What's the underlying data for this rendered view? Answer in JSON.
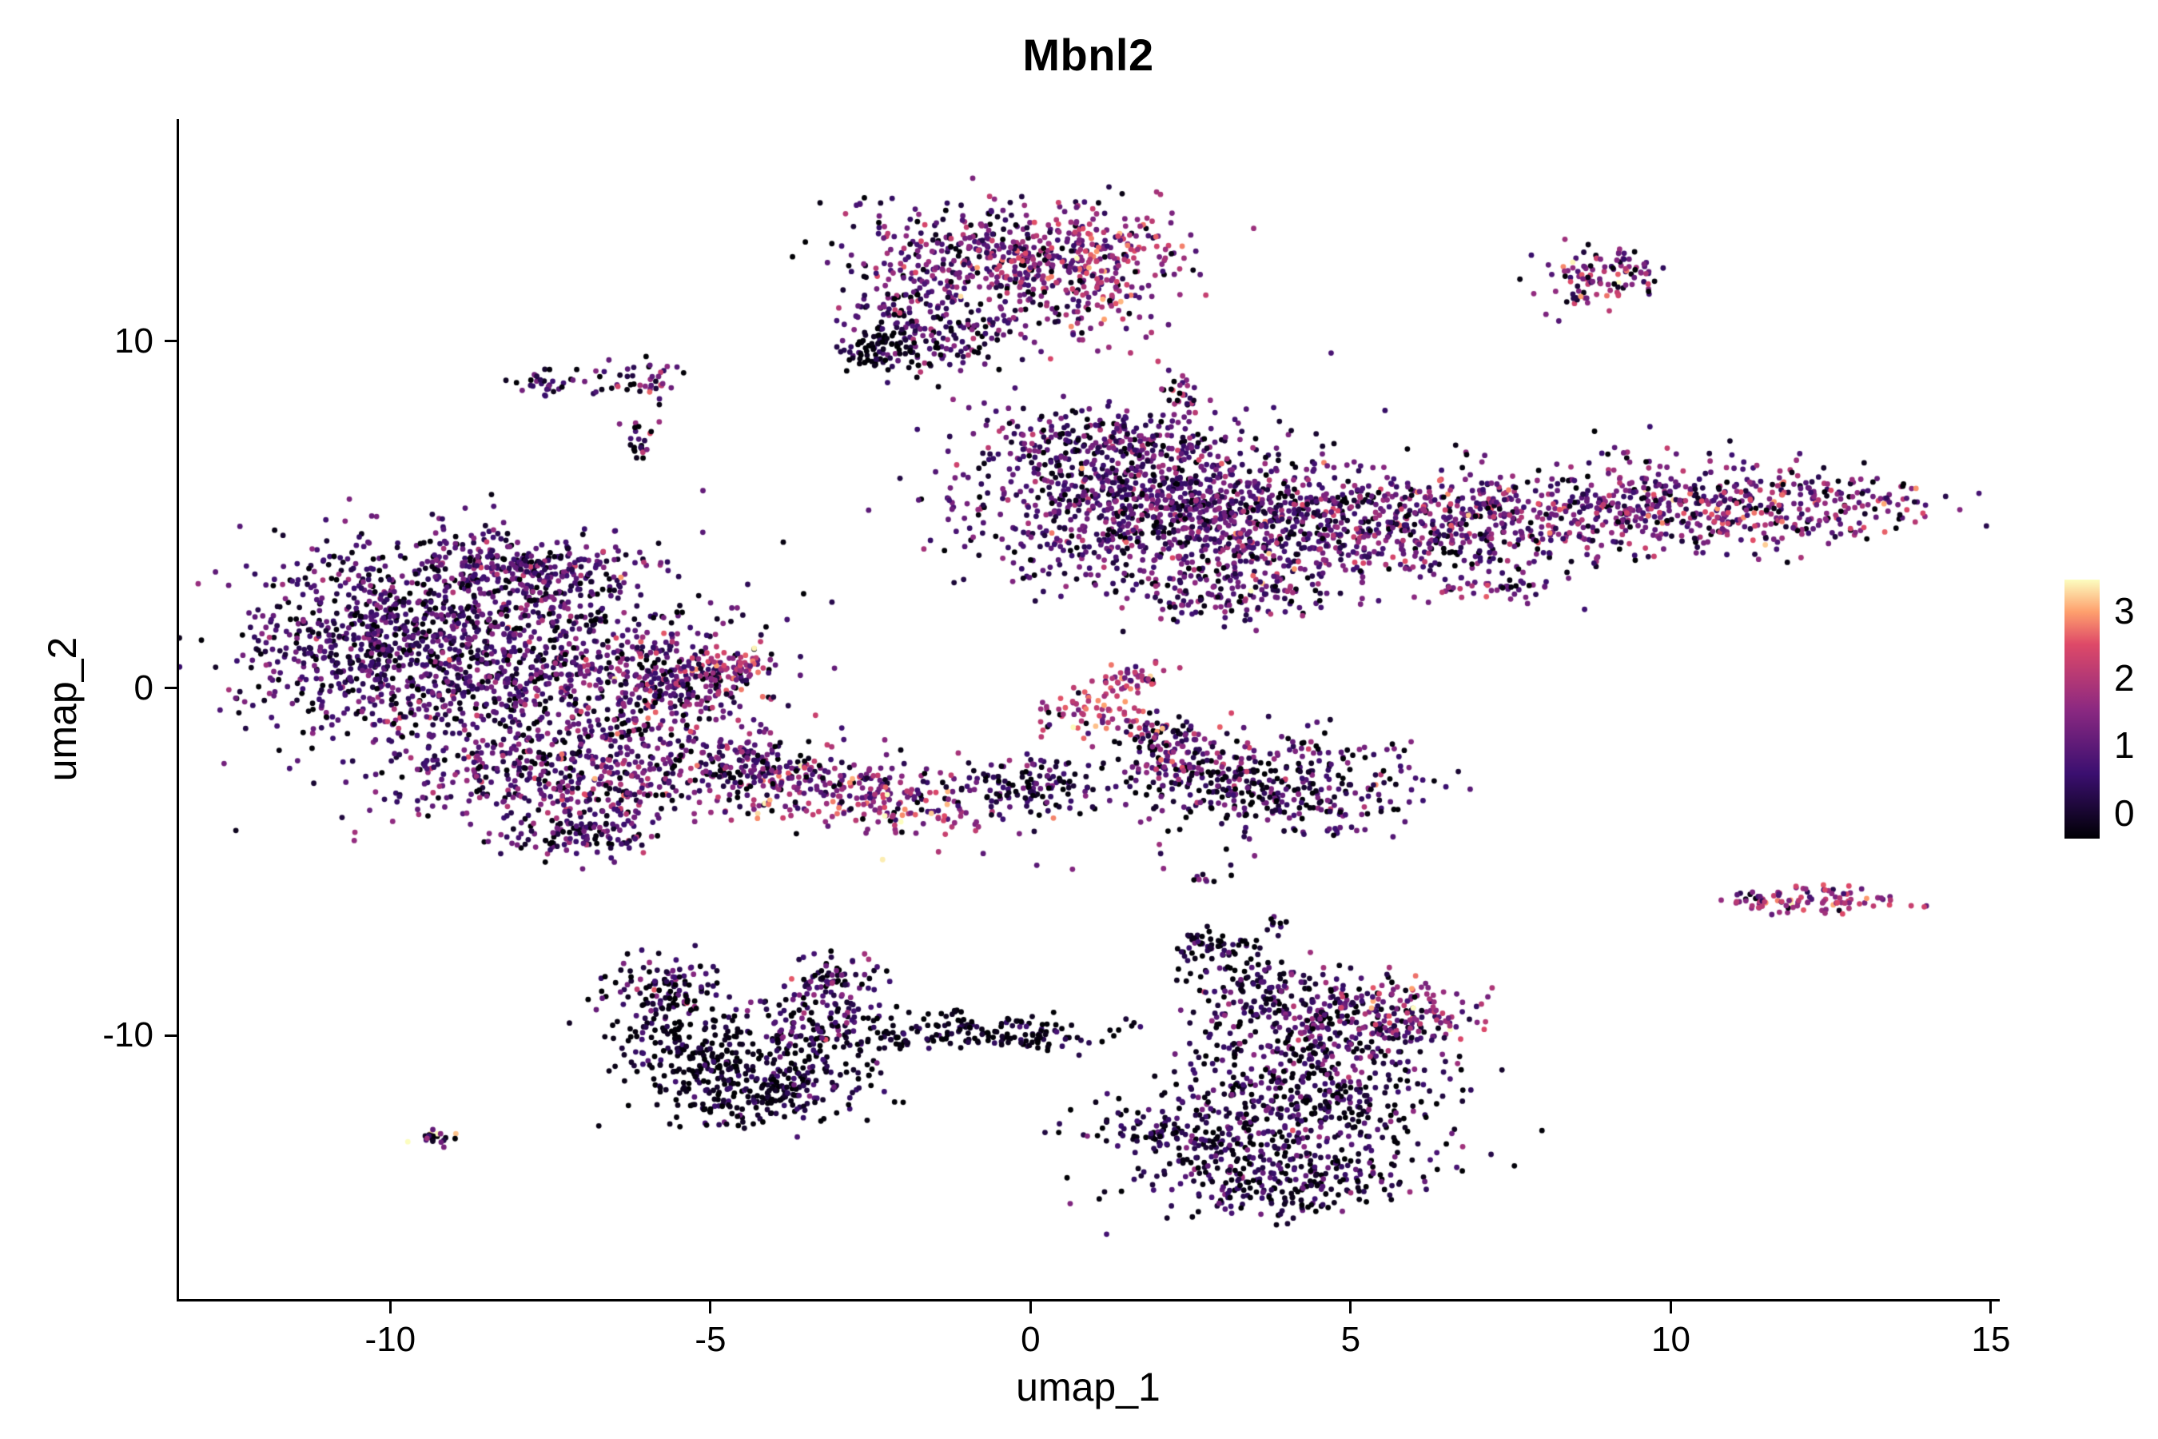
{
  "colors": {
    "background": "#ffffff",
    "axis": "#000000",
    "text": "#000000"
  },
  "chart_data": {
    "type": "scatter",
    "title": "Mbnl2",
    "xlabel": "umap_1",
    "ylabel": "umap_2",
    "xlim": [
      -13.3,
      15.1
    ],
    "ylim": [
      -17.6,
      16.4
    ],
    "grid": false,
    "x_ticks": {
      "values": [
        -10,
        -5,
        0,
        5,
        10,
        15
      ],
      "labels": [
        "-10",
        "-5",
        "0",
        "5",
        "10",
        "15"
      ]
    },
    "y_ticks": {
      "values": [
        -10,
        0,
        10
      ],
      "labels": [
        "-10",
        "0",
        "10"
      ]
    },
    "legend": {
      "position": "right",
      "colormap": "magma",
      "tick_labels": [
        "3",
        "2",
        "1",
        "0"
      ],
      "tick_values": [
        3,
        2,
        1,
        0
      ],
      "tick_fracs_from_bottom": [
        0.88,
        0.62,
        0.36,
        0.1
      ],
      "value_domain": [
        0,
        3.6
      ],
      "stops": [
        {
          "t": 0.0,
          "color": "#000004"
        },
        {
          "t": 0.25,
          "color": "#3b0f70"
        },
        {
          "t": 0.5,
          "color": "#8c2981"
        },
        {
          "t": 0.75,
          "color": "#de4968"
        },
        {
          "t": 0.875,
          "color": "#fe9f6d"
        },
        {
          "t": 1.0,
          "color": "#fcfdbf"
        }
      ]
    },
    "point_radius_px": 3.4,
    "seed": 42,
    "clusters": [
      {
        "n": 380,
        "cx": -0.8,
        "cy": 12.4,
        "sx": 1.0,
        "sy": 0.8,
        "mean": 1.3,
        "sd": 0.7,
        "dark": 0.1,
        "rot": 0
      },
      {
        "n": 200,
        "cx": -1.5,
        "cy": 10.4,
        "sx": 0.7,
        "sy": 0.7,
        "mean": 1.1,
        "sd": 0.6,
        "dark": 0.15,
        "rot": 0
      },
      {
        "n": 220,
        "cx": 0.6,
        "cy": 11.8,
        "sx": 0.8,
        "sy": 1.0,
        "mean": 1.7,
        "sd": 0.7,
        "dark": 0.08,
        "rot": 0
      },
      {
        "n": 90,
        "cx": 1.3,
        "cy": 12.7,
        "sx": 0.5,
        "sy": 0.6,
        "mean": 2.2,
        "sd": 0.6,
        "dark": 0.05,
        "rot": 0
      },
      {
        "n": 70,
        "cx": -2.3,
        "cy": 9.7,
        "sx": 0.35,
        "sy": 0.3,
        "mean": 0.3,
        "sd": 0.4,
        "dark": 0.45,
        "rot": 0
      },
      {
        "n": 25,
        "cx": 2.4,
        "cy": 8.6,
        "sx": 0.15,
        "sy": 0.3,
        "mean": 1.2,
        "sd": 0.8,
        "dark": 0.2,
        "rot": 0
      },
      {
        "n": 28,
        "cx": -7.6,
        "cy": 8.8,
        "sx": 0.25,
        "sy": 0.2,
        "mean": 1.1,
        "sd": 0.7,
        "dark": 0.2,
        "rot": -20
      },
      {
        "n": 45,
        "cx": -6.2,
        "cy": 8.9,
        "sx": 0.35,
        "sy": 0.25,
        "mean": 1.2,
        "sd": 0.8,
        "dark": 0.15,
        "rot": 0
      },
      {
        "n": 22,
        "cx": -6.1,
        "cy": 7.2,
        "sx": 0.15,
        "sy": 0.35,
        "mean": 0.9,
        "sd": 0.7,
        "dark": 0.25,
        "rot": 0
      },
      {
        "n": 110,
        "cx": 8.9,
        "cy": 11.8,
        "sx": 0.5,
        "sy": 0.4,
        "mean": 1.6,
        "sd": 0.8,
        "dark": 0.1,
        "rot": 0
      },
      {
        "n": 1000,
        "cx": 1.7,
        "cy": 5.4,
        "sx": 1.4,
        "sy": 1.2,
        "mean": 1.1,
        "sd": 0.6,
        "dark": 0.12,
        "rot": 0
      },
      {
        "n": 550,
        "cx": 4.2,
        "cy": 4.7,
        "sx": 1.2,
        "sy": 0.9,
        "mean": 1.3,
        "sd": 0.7,
        "dark": 0.1,
        "rot": 0
      },
      {
        "n": 330,
        "cx": 6.9,
        "cy": 4.9,
        "sx": 1.1,
        "sy": 0.8,
        "mean": 1.4,
        "sd": 0.7,
        "dark": 0.1,
        "rot": 0
      },
      {
        "n": 330,
        "cx": 9.4,
        "cy": 5.2,
        "sx": 1.2,
        "sy": 0.7,
        "mean": 1.4,
        "sd": 0.7,
        "dark": 0.1,
        "rot": 0
      },
      {
        "n": 260,
        "cx": 11.8,
        "cy": 5.3,
        "sx": 1.1,
        "sy": 0.6,
        "mean": 1.5,
        "sd": 0.8,
        "dark": 0.1,
        "rot": 0
      },
      {
        "n": 120,
        "cx": 0.9,
        "cy": 7.3,
        "sx": 0.9,
        "sy": 0.4,
        "mean": 1.2,
        "sd": 0.6,
        "dark": 0.12,
        "rot": 0
      },
      {
        "n": 120,
        "cx": 3.1,
        "cy": 2.7,
        "sx": 0.8,
        "sy": 0.4,
        "mean": 1.2,
        "sd": 0.7,
        "dark": 0.12,
        "rot": 0
      },
      {
        "n": 40,
        "cx": 7.3,
        "cy": 2.9,
        "sx": 0.5,
        "sy": 0.3,
        "mean": 1.3,
        "sd": 0.7,
        "dark": 0.1,
        "rot": 0
      },
      {
        "n": 1300,
        "cx": -8.6,
        "cy": 0.9,
        "sx": 1.7,
        "sy": 1.7,
        "mean": 1.0,
        "sd": 0.6,
        "dark": 0.13,
        "rot": 0
      },
      {
        "n": 280,
        "cx": -7.9,
        "cy": 3.3,
        "sx": 1.1,
        "sy": 0.6,
        "mean": 1.1,
        "sd": 0.6,
        "dark": 0.12,
        "rot": 0
      },
      {
        "n": 320,
        "cx": -5.7,
        "cy": 0.2,
        "sx": 0.9,
        "sy": 0.8,
        "mean": 1.4,
        "sd": 0.8,
        "dark": 0.1,
        "rot": 0
      },
      {
        "n": 420,
        "cx": -7.2,
        "cy": -2.6,
        "sx": 1.3,
        "sy": 0.8,
        "mean": 1.2,
        "sd": 0.7,
        "dark": 0.12,
        "rot": 0
      },
      {
        "n": 110,
        "cx": -6.9,
        "cy": -4.2,
        "sx": 0.6,
        "sy": 0.4,
        "mean": 1.0,
        "sd": 0.6,
        "dark": 0.15,
        "rot": 0
      },
      {
        "n": 280,
        "cx": -10.4,
        "cy": 1.4,
        "sx": 0.8,
        "sy": 1.1,
        "mean": 0.9,
        "sd": 0.5,
        "dark": 0.15,
        "rot": 0
      },
      {
        "n": 60,
        "cx": -4.7,
        "cy": 0.6,
        "sx": 0.3,
        "sy": 0.3,
        "mean": 2.2,
        "sd": 0.7,
        "dark": 0.05,
        "rot": 0
      },
      {
        "n": 300,
        "cx": -2.9,
        "cy": -3.0,
        "sx": 1.2,
        "sy": 0.6,
        "mean": 1.7,
        "sd": 0.8,
        "dark": 0.08,
        "rot": -10
      },
      {
        "n": 140,
        "cx": -4.4,
        "cy": -2.2,
        "sx": 0.6,
        "sy": 0.45,
        "mean": 1.2,
        "sd": 0.7,
        "dark": 0.12,
        "rot": 0
      },
      {
        "n": 130,
        "cx": -0.1,
        "cy": -2.8,
        "sx": 0.6,
        "sy": 0.45,
        "mean": 0.8,
        "sd": 0.6,
        "dark": 0.25,
        "rot": 0
      },
      {
        "n": 70,
        "cx": 1.0,
        "cy": -0.6,
        "sx": 0.45,
        "sy": 0.35,
        "mean": 2.3,
        "sd": 0.6,
        "dark": 0.04,
        "rot": 35
      },
      {
        "n": 45,
        "cx": 1.6,
        "cy": 0.3,
        "sx": 0.3,
        "sy": 0.25,
        "mean": 2.1,
        "sd": 0.6,
        "dark": 0.05,
        "rot": 35
      },
      {
        "n": 60,
        "cx": 2.1,
        "cy": -1.3,
        "sx": 0.35,
        "sy": 0.3,
        "mean": 1.4,
        "sd": 0.8,
        "dark": 0.15,
        "rot": 0
      },
      {
        "n": 380,
        "cx": 3.7,
        "cy": -2.7,
        "sx": 1.1,
        "sy": 0.75,
        "mean": 1.0,
        "sd": 0.7,
        "dark": 0.22,
        "rot": 0
      },
      {
        "n": 80,
        "cx": 2.3,
        "cy": -2.0,
        "sx": 0.5,
        "sy": 0.35,
        "mean": 1.2,
        "sd": 0.7,
        "dark": 0.15,
        "rot": 25
      },
      {
        "n": 110,
        "cx": -5.7,
        "cy": -8.6,
        "sx": 0.45,
        "sy": 0.55,
        "mean": 0.9,
        "sd": 0.7,
        "dark": 0.25,
        "rot": 0
      },
      {
        "n": 230,
        "cx": -5.2,
        "cy": -10.3,
        "sx": 0.65,
        "sy": 0.8,
        "mean": 0.35,
        "sd": 0.4,
        "dark": 0.45,
        "rot": 30
      },
      {
        "n": 200,
        "cx": -4.1,
        "cy": -11.7,
        "sx": 0.85,
        "sy": 0.45,
        "mean": 0.4,
        "sd": 0.45,
        "dark": 0.42,
        "rot": 15
      },
      {
        "n": 190,
        "cx": -3.4,
        "cy": -9.9,
        "sx": 0.55,
        "sy": 0.8,
        "mean": 0.8,
        "sd": 0.6,
        "dark": 0.25,
        "rot": 0
      },
      {
        "n": 55,
        "cx": -3.0,
        "cy": -8.3,
        "sx": 0.35,
        "sy": 0.35,
        "mean": 1.0,
        "sd": 0.7,
        "dark": 0.2,
        "rot": 0
      },
      {
        "n": 150,
        "cx": -0.7,
        "cy": -9.9,
        "sx": 0.9,
        "sy": 0.3,
        "mean": 0.35,
        "sd": 0.4,
        "dark": 0.45,
        "rot": 0
      },
      {
        "n": 25,
        "cx": -2.2,
        "cy": -10.2,
        "sx": 0.3,
        "sy": 0.15,
        "mean": 0.4,
        "sd": 0.4,
        "dark": 0.4,
        "rot": 0
      },
      {
        "n": 55,
        "cx": 2.9,
        "cy": -7.4,
        "sx": 0.35,
        "sy": 0.25,
        "mean": 0.5,
        "sd": 0.5,
        "dark": 0.35,
        "rot": 0
      },
      {
        "n": 75,
        "cx": 3.3,
        "cy": -8.5,
        "sx": 0.5,
        "sy": 0.35,
        "mean": 0.6,
        "sd": 0.5,
        "dark": 0.3,
        "rot": -30
      },
      {
        "n": 330,
        "cx": 4.5,
        "cy": -9.7,
        "sx": 1.0,
        "sy": 0.7,
        "mean": 1.0,
        "sd": 0.7,
        "dark": 0.2,
        "rot": 0
      },
      {
        "n": 110,
        "cx": 6.0,
        "cy": -9.4,
        "sx": 0.5,
        "sy": 0.5,
        "mean": 1.6,
        "sd": 0.8,
        "dark": 0.1,
        "rot": 0
      },
      {
        "n": 500,
        "cx": 4.2,
        "cy": -12.2,
        "sx": 1.2,
        "sy": 1.0,
        "mean": 0.8,
        "sd": 0.6,
        "dark": 0.28,
        "rot": 0
      },
      {
        "n": 230,
        "cx": 3.9,
        "cy": -14.2,
        "sx": 1.0,
        "sy": 0.55,
        "mean": 0.7,
        "sd": 0.6,
        "dark": 0.3,
        "rot": 0
      },
      {
        "n": 90,
        "cx": 2.2,
        "cy": -12.9,
        "sx": 0.7,
        "sy": 0.25,
        "mean": 0.6,
        "sd": 0.5,
        "dark": 0.3,
        "rot": -15
      },
      {
        "n": 22,
        "cx": -9.3,
        "cy": -12.9,
        "sx": 0.22,
        "sy": 0.12,
        "mean": 1.2,
        "sd": 1.1,
        "dark": 0.35,
        "rot": 0
      },
      {
        "n": 85,
        "cx": 12.4,
        "cy": -6.1,
        "sx": 0.75,
        "sy": 0.22,
        "mean": 2.0,
        "sd": 0.6,
        "dark": 0.06,
        "rot": 0
      },
      {
        "n": 14,
        "cx": 11.3,
        "cy": -6.0,
        "sx": 0.25,
        "sy": 0.12,
        "mean": 1.8,
        "sd": 0.6,
        "dark": 0.1,
        "rot": 0
      },
      {
        "n": 10,
        "cx": 2.7,
        "cy": -5.4,
        "sx": 0.3,
        "sy": 0.15,
        "mean": 1.0,
        "sd": 0.7,
        "dark": 0.2,
        "rot": 0
      },
      {
        "n": 10,
        "cx": 3.8,
        "cy": -6.7,
        "sx": 0.15,
        "sy": 0.3,
        "mean": 0.5,
        "sd": 0.4,
        "dark": 0.3,
        "rot": 0
      }
    ]
  }
}
